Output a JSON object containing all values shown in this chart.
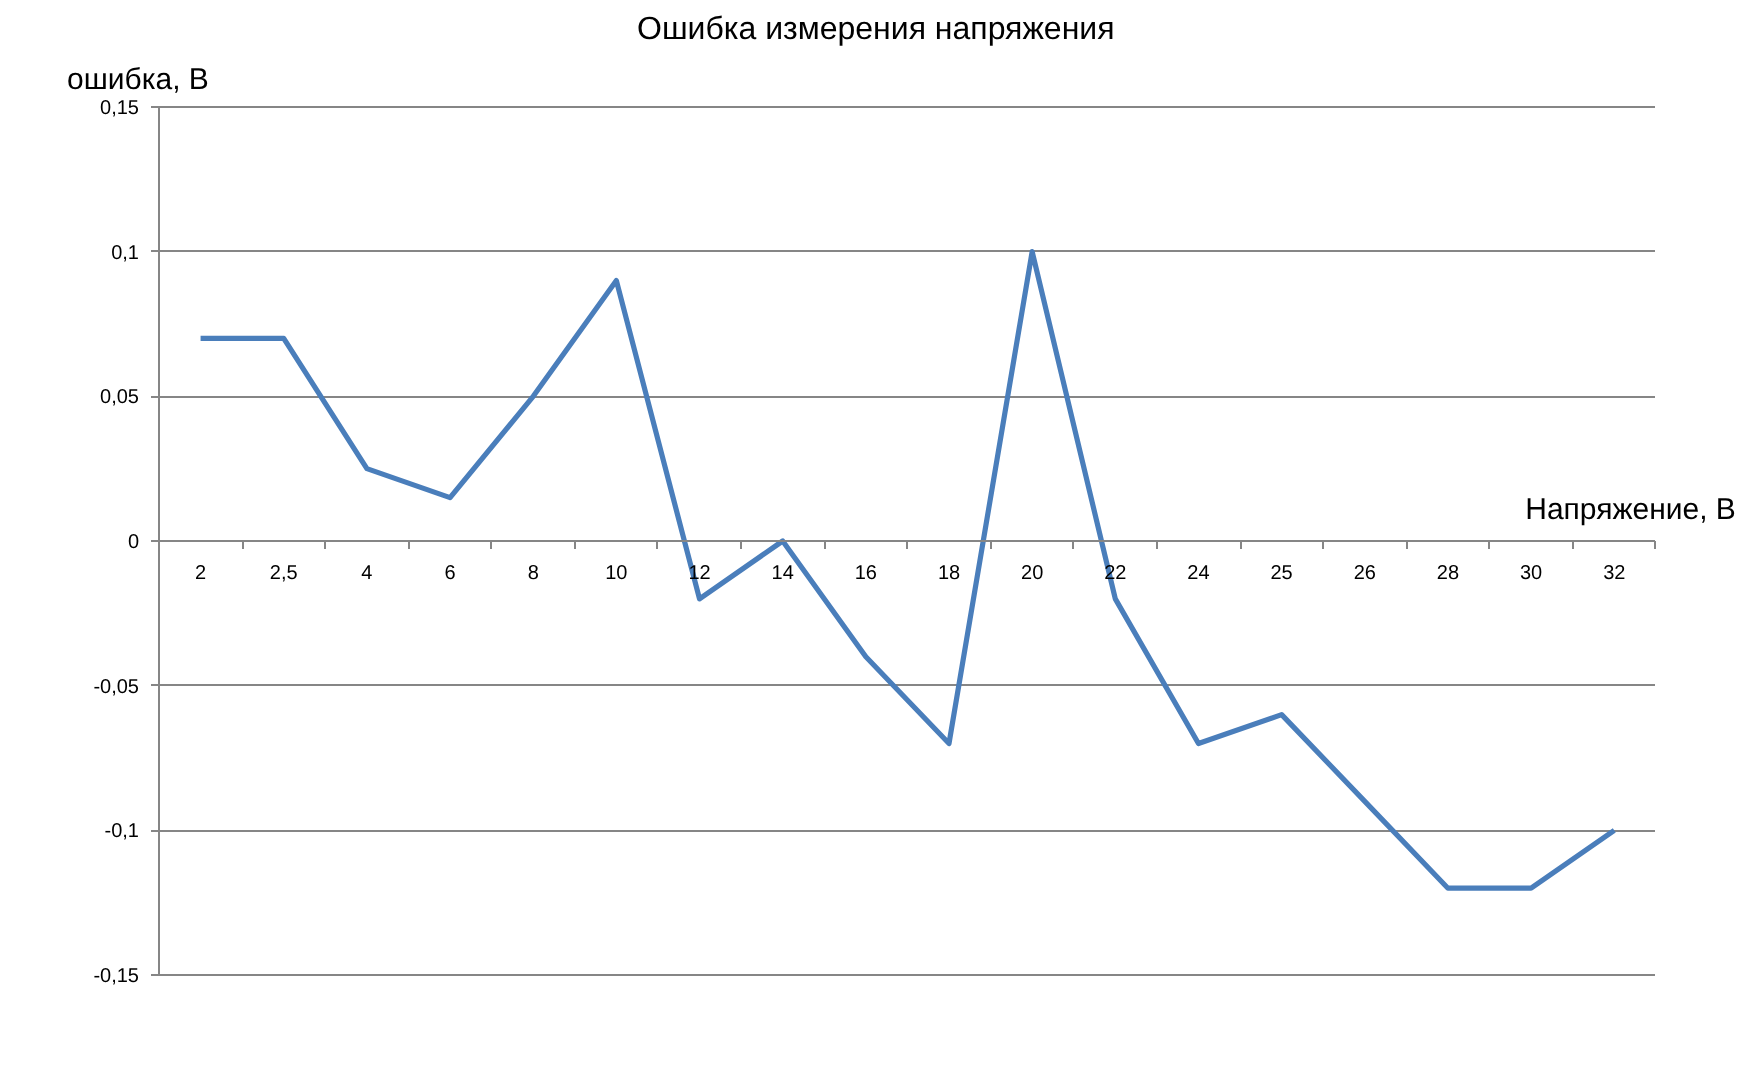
{
  "chart_data": {
    "type": "line",
    "title": "Ошибка измерения напряжения",
    "xlabel": "Напряжение, В",
    "ylabel": "ошибка, В",
    "categories": [
      "2",
      "2,5",
      "4",
      "6",
      "8",
      "10",
      "12",
      "14",
      "16",
      "18",
      "20",
      "22",
      "24",
      "25",
      "26",
      "28",
      "30",
      "32"
    ],
    "series": [
      {
        "color": "#4a7ebb",
        "values": [
          0.07,
          0.07,
          0.025,
          0.015,
          0.05,
          0.09,
          -0.02,
          0,
          -0.04,
          -0.07,
          0.1,
          -0.02,
          -0.07,
          -0.06,
          -0.09,
          -0.12,
          -0.12,
          -0.1
        ]
      }
    ],
    "ylim": [
      -0.15,
      0.15
    ],
    "yticks": [
      {
        "value": -0.15,
        "label": "-0,15"
      },
      {
        "value": -0.1,
        "label": "-0,1"
      },
      {
        "value": -0.05,
        "label": "-0,05"
      },
      0,
      {
        "value": 0.05,
        "label": "0,05"
      },
      {
        "value": 0.1,
        "label": "0,1"
      },
      {
        "value": 0.15,
        "label": "0,15"
      }
    ],
    "grid": "y",
    "marker": "none",
    "line_style": "solid"
  }
}
